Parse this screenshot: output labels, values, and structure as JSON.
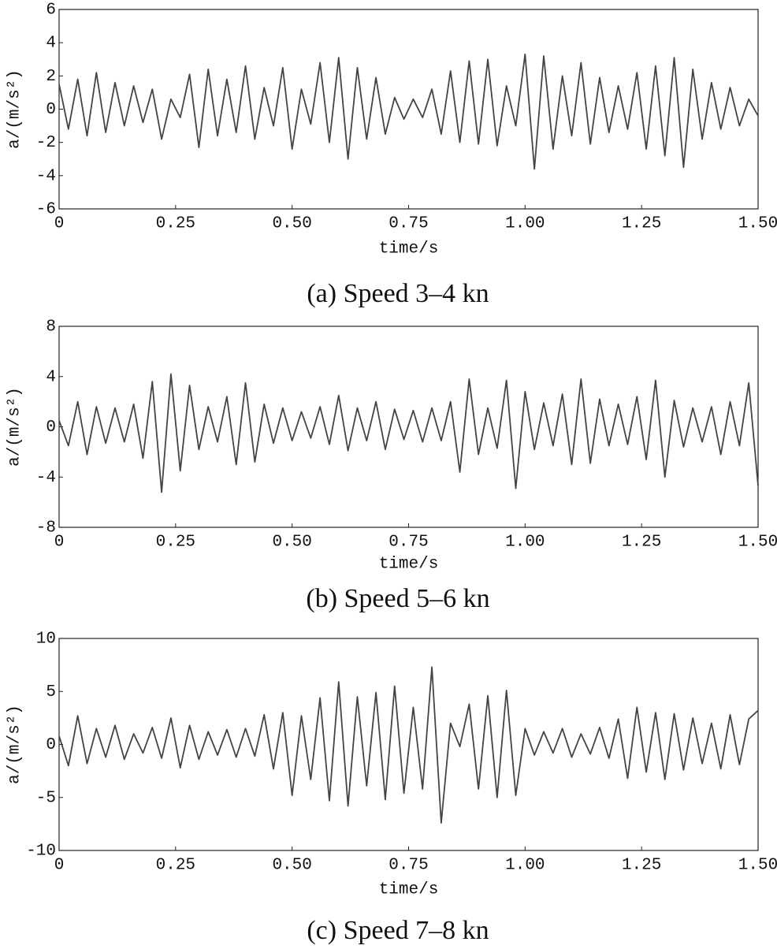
{
  "chart_data": [
    {
      "type": "line",
      "title": "(a) Speed 3–4 kn",
      "xlabel": "time/s",
      "ylabel": "a/(m/s²)",
      "color": "#444444",
      "xlim": [
        0,
        1.5
      ],
      "ylim": [
        -6,
        6
      ],
      "xticks": [
        0,
        0.25,
        {
          "value": 0.5,
          "label": "0.50"
        },
        0.75,
        {
          "value": 1,
          "label": "1.00"
        },
        1.25,
        {
          "value": 1.5,
          "label": "1.50"
        }
      ],
      "yticks": [
        -6,
        -4,
        -2,
        0,
        2,
        4,
        6
      ],
      "x": [
        0,
        0.02,
        0.04,
        0.06,
        0.08,
        0.1,
        0.12,
        0.14,
        0.16,
        0.18,
        0.2,
        0.22,
        0.24,
        0.26,
        0.28,
        0.3,
        0.32,
        0.34,
        0.36,
        0.38,
        0.4,
        0.42,
        0.44,
        0.46,
        0.48,
        0.5,
        0.52,
        0.54,
        0.56,
        0.58,
        0.6,
        0.62,
        0.64,
        0.66,
        0.68,
        0.7,
        0.72,
        0.74,
        0.76,
        0.78,
        0.8,
        0.82,
        0.84,
        0.86,
        0.88,
        0.9,
        0.92,
        0.94,
        0.96,
        0.98,
        1,
        1.02,
        1.04,
        1.06,
        1.08,
        1.1,
        1.12,
        1.14,
        1.16,
        1.18,
        1.2,
        1.22,
        1.24,
        1.26,
        1.28,
        1.3,
        1.32,
        1.34,
        1.36,
        1.38,
        1.4,
        1.42,
        1.44,
        1.46,
        1.48,
        1.5
      ],
      "values": [
        1.5,
        -1.2,
        1.8,
        -1.6,
        2.2,
        -1.4,
        1.6,
        -1.0,
        1.4,
        -0.8,
        1.2,
        -1.8,
        0.6,
        -0.5,
        2.1,
        -2.3,
        2.4,
        -1.6,
        1.8,
        -1.4,
        2.6,
        -1.8,
        1.3,
        -1.0,
        2.5,
        -2.4,
        1.2,
        -0.9,
        2.8,
        -2.0,
        3.1,
        -3.0,
        2.5,
        -1.8,
        1.9,
        -1.5,
        0.7,
        -0.6,
        0.6,
        -0.5,
        1.2,
        -1.5,
        2.3,
        -2.0,
        2.9,
        -2.1,
        3.0,
        -2.2,
        1.4,
        -1.0,
        3.3,
        -3.6,
        3.2,
        -2.4,
        2.0,
        -1.6,
        2.8,
        -2.1,
        1.9,
        -1.4,
        1.4,
        -1.2,
        2.2,
        -2.4,
        2.6,
        -2.8,
        3.1,
        -3.5,
        2.4,
        -1.8,
        1.6,
        -1.2,
        1.3,
        -1.0,
        0.6,
        -0.4
      ]
    },
    {
      "type": "line",
      "title": "(b) Speed 5–6 kn",
      "xlabel": "time/s",
      "ylabel": "a/(m/s²)",
      "color": "#444444",
      "xlim": [
        0,
        1.5
      ],
      "ylim": [
        -8,
        8
      ],
      "xticks": [
        0,
        0.25,
        {
          "value": 0.5,
          "label": "0.50"
        },
        0.75,
        {
          "value": 1,
          "label": "1.00"
        },
        1.25,
        {
          "value": 1.5,
          "label": "1.50"
        }
      ],
      "yticks": [
        -8,
        -4,
        0,
        4,
        8
      ],
      "x": [
        0,
        0.02,
        0.04,
        0.06,
        0.08,
        0.1,
        0.12,
        0.14,
        0.16,
        0.18,
        0.2,
        0.22,
        0.24,
        0.26,
        0.28,
        0.3,
        0.32,
        0.34,
        0.36,
        0.38,
        0.4,
        0.42,
        0.44,
        0.46,
        0.48,
        0.5,
        0.52,
        0.54,
        0.56,
        0.58,
        0.6,
        0.62,
        0.64,
        0.66,
        0.68,
        0.7,
        0.72,
        0.74,
        0.76,
        0.78,
        0.8,
        0.82,
        0.84,
        0.86,
        0.88,
        0.9,
        0.92,
        0.94,
        0.96,
        0.98,
        1,
        1.02,
        1.04,
        1.06,
        1.08,
        1.1,
        1.12,
        1.14,
        1.16,
        1.18,
        1.2,
        1.22,
        1.24,
        1.26,
        1.28,
        1.3,
        1.32,
        1.34,
        1.36,
        1.38,
        1.4,
        1.42,
        1.44,
        1.46,
        1.48,
        1.5
      ],
      "values": [
        0.5,
        -1.5,
        2.0,
        -2.2,
        1.6,
        -1.3,
        1.5,
        -1.2,
        1.8,
        -2.5,
        3.6,
        -5.2,
        4.2,
        -3.5,
        3.3,
        -1.8,
        1.6,
        -1.2,
        2.4,
        -3.0,
        3.5,
        -2.8,
        1.8,
        -1.3,
        1.5,
        -1.1,
        1.2,
        -0.9,
        1.6,
        -1.4,
        2.5,
        -1.9,
        1.5,
        -1.1,
        2.0,
        -1.8,
        1.4,
        -1.0,
        1.3,
        -1.2,
        1.5,
        -1.1,
        2.0,
        -3.6,
        3.8,
        -2.2,
        1.5,
        -1.7,
        3.7,
        -4.9,
        2.8,
        -1.8,
        1.9,
        -1.5,
        2.6,
        -3.0,
        3.8,
        -2.9,
        2.2,
        -1.5,
        1.8,
        -1.4,
        2.4,
        -2.6,
        3.7,
        -4.0,
        2.1,
        -1.6,
        1.5,
        -1.2,
        1.6,
        -2.2,
        2.0,
        -1.5,
        3.5,
        -4.7
      ]
    },
    {
      "type": "line",
      "title": "(c) Speed 7–8 kn",
      "xlabel": "time/s",
      "ylabel": "a/(m/s²)",
      "color": "#444444",
      "xlim": [
        0,
        1.5
      ],
      "ylim": [
        -10,
        10
      ],
      "xticks": [
        0,
        0.25,
        {
          "value": 0.5,
          "label": "0.50"
        },
        0.75,
        {
          "value": 1,
          "label": "1.00"
        },
        1.25,
        {
          "value": 1.5,
          "label": "1.50"
        }
      ],
      "yticks": [
        -10,
        -5,
        0,
        5,
        10
      ],
      "x": [
        0,
        0.02,
        0.04,
        0.06,
        0.08,
        0.1,
        0.12,
        0.14,
        0.16,
        0.18,
        0.2,
        0.22,
        0.24,
        0.26,
        0.28,
        0.3,
        0.32,
        0.34,
        0.36,
        0.38,
        0.4,
        0.42,
        0.44,
        0.46,
        0.48,
        0.5,
        0.52,
        0.54,
        0.56,
        0.58,
        0.6,
        0.62,
        0.64,
        0.66,
        0.68,
        0.7,
        0.72,
        0.74,
        0.76,
        0.78,
        0.8,
        0.82,
        0.84,
        0.86,
        0.88,
        0.9,
        0.92,
        0.94,
        0.96,
        0.98,
        1,
        1.02,
        1.04,
        1.06,
        1.08,
        1.1,
        1.12,
        1.14,
        1.16,
        1.18,
        1.2,
        1.22,
        1.24,
        1.26,
        1.28,
        1.3,
        1.32,
        1.34,
        1.36,
        1.38,
        1.4,
        1.42,
        1.44,
        1.46,
        1.48,
        1.5
      ],
      "values": [
        0.8,
        -2.0,
        2.7,
        -1.8,
        1.5,
        -1.2,
        1.8,
        -1.4,
        1.0,
        -0.8,
        1.6,
        -1.3,
        2.5,
        -2.2,
        1.8,
        -1.4,
        1.2,
        -1.0,
        1.4,
        -1.2,
        1.5,
        -1.1,
        2.8,
        -2.3,
        3.0,
        -4.8,
        2.7,
        -3.3,
        4.4,
        -5.3,
        5.9,
        -5.8,
        4.5,
        -3.9,
        4.9,
        -5.2,
        5.5,
        -4.6,
        3.5,
        -4.2,
        7.3,
        -7.4,
        2.0,
        -0.2,
        3.8,
        -4.2,
        4.6,
        -5.0,
        5.1,
        -4.8,
        1.5,
        -1.0,
        1.2,
        -0.8,
        1.5,
        -1.2,
        1.0,
        -0.9,
        1.6,
        -1.3,
        2.4,
        -3.2,
        3.5,
        -2.6,
        3.0,
        -3.3,
        2.9,
        -2.4,
        2.5,
        -1.8,
        2.0,
        -2.3,
        2.8,
        -1.9,
        2.4,
        3.2
      ]
    }
  ]
}
